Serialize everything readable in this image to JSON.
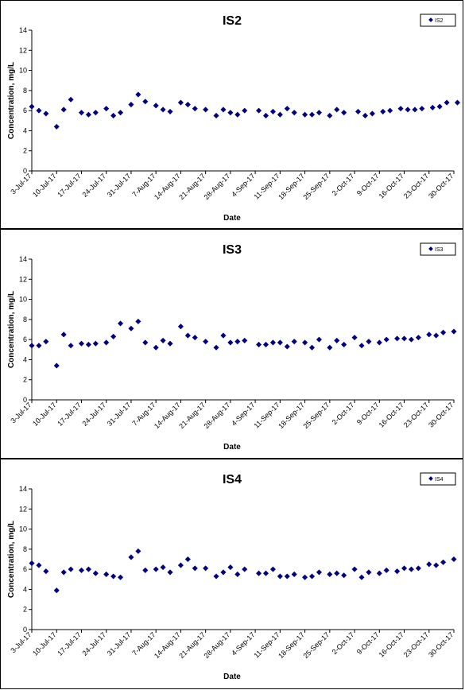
{
  "page": {
    "marker_color": "#000080"
  },
  "chart_data": [
    {
      "type": "scatter",
      "title": "IS2",
      "xlabel": "Date",
      "ylabel": "Concentration, mg/L",
      "ylim": [
        0,
        14
      ],
      "yticks": [
        0,
        2,
        4,
        6,
        8,
        10,
        12,
        14
      ],
      "xlim": [
        "2017-07-03",
        "2017-10-30"
      ],
      "xticks": [
        "3-Jul-17",
        "10-Jul-17",
        "17-Jul-17",
        "24-Jul-17",
        "31-Jul-17",
        "7-Aug-17",
        "14-Aug-17",
        "21-Aug-17",
        "28-Aug-17",
        "4-Sep-17",
        "11-Sep-17",
        "18-Sep-17",
        "25-Sep-17",
        "2-Oct-17",
        "9-Oct-17",
        "16-Oct-17",
        "23-Oct-17",
        "30-Oct-17"
      ],
      "grid": false,
      "legend": "top-right",
      "series": [
        {
          "name": "IS2",
          "color": "#000080",
          "points": [
            [
              "2017-07-03",
              6.4
            ],
            [
              "2017-07-05",
              6.0
            ],
            [
              "2017-07-07",
              5.7
            ],
            [
              "2017-07-10",
              4.4
            ],
            [
              "2017-07-12",
              6.1
            ],
            [
              "2017-07-14",
              7.1
            ],
            [
              "2017-07-17",
              5.8
            ],
            [
              "2017-07-19",
              5.6
            ],
            [
              "2017-07-21",
              5.8
            ],
            [
              "2017-07-24",
              6.2
            ],
            [
              "2017-07-26",
              5.5
            ],
            [
              "2017-07-28",
              5.8
            ],
            [
              "2017-07-31",
              6.6
            ],
            [
              "2017-08-02",
              7.6
            ],
            [
              "2017-08-04",
              6.9
            ],
            [
              "2017-08-07",
              6.5
            ],
            [
              "2017-08-09",
              6.1
            ],
            [
              "2017-08-11",
              5.9
            ],
            [
              "2017-08-14",
              6.8
            ],
            [
              "2017-08-16",
              6.6
            ],
            [
              "2017-08-18",
              6.2
            ],
            [
              "2017-08-21",
              6.1
            ],
            [
              "2017-08-24",
              5.5
            ],
            [
              "2017-08-26",
              6.1
            ],
            [
              "2017-08-28",
              5.8
            ],
            [
              "2017-08-30",
              5.6
            ],
            [
              "2017-09-01",
              6.0
            ],
            [
              "2017-09-05",
              6.0
            ],
            [
              "2017-09-07",
              5.5
            ],
            [
              "2017-09-09",
              5.9
            ],
            [
              "2017-09-11",
              5.6
            ],
            [
              "2017-09-13",
              6.2
            ],
            [
              "2017-09-15",
              5.8
            ],
            [
              "2017-09-18",
              5.6
            ],
            [
              "2017-09-20",
              5.6
            ],
            [
              "2017-09-22",
              5.8
            ],
            [
              "2017-09-25",
              5.5
            ],
            [
              "2017-09-27",
              6.1
            ],
            [
              "2017-09-29",
              5.8
            ],
            [
              "2017-10-03",
              5.9
            ],
            [
              "2017-10-05",
              5.5
            ],
            [
              "2017-10-07",
              5.7
            ],
            [
              "2017-10-10",
              5.9
            ],
            [
              "2017-10-12",
              6.0
            ],
            [
              "2017-10-15",
              6.2
            ],
            [
              "2017-10-17",
              6.1
            ],
            [
              "2017-10-19",
              6.1
            ],
            [
              "2017-10-21",
              6.2
            ],
            [
              "2017-10-24",
              6.3
            ],
            [
              "2017-10-26",
              6.4
            ],
            [
              "2017-10-28",
              6.8
            ],
            [
              "2017-10-31",
              6.8
            ]
          ]
        }
      ]
    },
    {
      "type": "scatter",
      "title": "IS3",
      "xlabel": "Date",
      "ylabel": "Concentration, mg/L",
      "ylim": [
        0,
        14
      ],
      "yticks": [
        0,
        2,
        4,
        6,
        8,
        10,
        12,
        14
      ],
      "xlim": [
        "2017-07-03",
        "2017-10-30"
      ],
      "xticks": [
        "3-Jul-17",
        "10-Jul-17",
        "17-Jul-17",
        "24-Jul-17",
        "31-Jul-17",
        "7-Aug-17",
        "14-Aug-17",
        "21-Aug-17",
        "28-Aug-17",
        "4-Sep-17",
        "11-Sep-17",
        "18-Sep-17",
        "25-Sep-17",
        "2-Oct-17",
        "9-Oct-17",
        "16-Oct-17",
        "23-Oct-17",
        "30-Oct-17"
      ],
      "grid": false,
      "legend": "top-right",
      "series": [
        {
          "name": "IS3",
          "color": "#000080",
          "points": [
            [
              "2017-07-03",
              5.4
            ],
            [
              "2017-07-05",
              5.4
            ],
            [
              "2017-07-07",
              5.8
            ],
            [
              "2017-07-10",
              3.4
            ],
            [
              "2017-07-12",
              6.5
            ],
            [
              "2017-07-14",
              5.4
            ],
            [
              "2017-07-17",
              5.6
            ],
            [
              "2017-07-19",
              5.5
            ],
            [
              "2017-07-21",
              5.6
            ],
            [
              "2017-07-24",
              5.7
            ],
            [
              "2017-07-26",
              6.3
            ],
            [
              "2017-07-28",
              7.6
            ],
            [
              "2017-07-31",
              7.1
            ],
            [
              "2017-08-02",
              7.8
            ],
            [
              "2017-08-04",
              5.7
            ],
            [
              "2017-08-07",
              5.2
            ],
            [
              "2017-08-09",
              5.9
            ],
            [
              "2017-08-11",
              5.6
            ],
            [
              "2017-08-14",
              7.3
            ],
            [
              "2017-08-16",
              6.4
            ],
            [
              "2017-08-18",
              6.2
            ],
            [
              "2017-08-21",
              5.8
            ],
            [
              "2017-08-24",
              5.2
            ],
            [
              "2017-08-26",
              6.4
            ],
            [
              "2017-08-28",
              5.7
            ],
            [
              "2017-08-30",
              5.8
            ],
            [
              "2017-09-01",
              5.9
            ],
            [
              "2017-09-05",
              5.5
            ],
            [
              "2017-09-07",
              5.5
            ],
            [
              "2017-09-09",
              5.7
            ],
            [
              "2017-09-11",
              5.7
            ],
            [
              "2017-09-13",
              5.3
            ],
            [
              "2017-09-15",
              5.8
            ],
            [
              "2017-09-18",
              5.7
            ],
            [
              "2017-09-20",
              5.2
            ],
            [
              "2017-09-22",
              6.0
            ],
            [
              "2017-09-25",
              5.2
            ],
            [
              "2017-09-27",
              5.9
            ],
            [
              "2017-09-29",
              5.5
            ],
            [
              "2017-10-02",
              6.2
            ],
            [
              "2017-10-04",
              5.4
            ],
            [
              "2017-10-06",
              5.8
            ],
            [
              "2017-10-09",
              5.7
            ],
            [
              "2017-10-11",
              6.0
            ],
            [
              "2017-10-14",
              6.1
            ],
            [
              "2017-10-16",
              6.1
            ],
            [
              "2017-10-18",
              6.0
            ],
            [
              "2017-10-20",
              6.2
            ],
            [
              "2017-10-23",
              6.5
            ],
            [
              "2017-10-25",
              6.4
            ],
            [
              "2017-10-27",
              6.7
            ],
            [
              "2017-10-30",
              6.8
            ]
          ]
        }
      ]
    },
    {
      "type": "scatter",
      "title": "IS4",
      "xlabel": "Date",
      "ylabel": "Concentration, mg/L",
      "ylim": [
        0,
        14
      ],
      "yticks": [
        0,
        2,
        4,
        6,
        8,
        10,
        12,
        14
      ],
      "xlim": [
        "2017-07-03",
        "2017-10-30"
      ],
      "xticks": [
        "3-Jul-17",
        "10-Jul-17",
        "17-Jul-17",
        "24-Jul-17",
        "31-Jul-17",
        "7-Aug-17",
        "14-Aug-17",
        "21-Aug-17",
        "28-Aug-17",
        "4-Sep-17",
        "11-Sep-17",
        "18-Sep-17",
        "25-Sep-17",
        "2-Oct-17",
        "9-Oct-17",
        "16-Oct-17",
        "23-Oct-17",
        "30-Oct-17"
      ],
      "grid": false,
      "legend": "top-right",
      "series": [
        {
          "name": "IS4",
          "color": "#000080",
          "points": [
            [
              "2017-07-03",
              6.6
            ],
            [
              "2017-07-05",
              6.4
            ],
            [
              "2017-07-07",
              5.8
            ],
            [
              "2017-07-10",
              3.9
            ],
            [
              "2017-07-12",
              5.7
            ],
            [
              "2017-07-14",
              6.0
            ],
            [
              "2017-07-17",
              5.9
            ],
            [
              "2017-07-19",
              6.0
            ],
            [
              "2017-07-21",
              5.6
            ],
            [
              "2017-07-24",
              5.5
            ],
            [
              "2017-07-26",
              5.3
            ],
            [
              "2017-07-28",
              5.2
            ],
            [
              "2017-07-31",
              7.2
            ],
            [
              "2017-08-02",
              7.8
            ],
            [
              "2017-08-04",
              5.9
            ],
            [
              "2017-08-07",
              6.0
            ],
            [
              "2017-08-09",
              6.2
            ],
            [
              "2017-08-11",
              5.7
            ],
            [
              "2017-08-14",
              6.4
            ],
            [
              "2017-08-16",
              7.0
            ],
            [
              "2017-08-18",
              6.1
            ],
            [
              "2017-08-21",
              6.1
            ],
            [
              "2017-08-24",
              5.3
            ],
            [
              "2017-08-26",
              5.7
            ],
            [
              "2017-08-28",
              6.2
            ],
            [
              "2017-08-30",
              5.5
            ],
            [
              "2017-09-01",
              6.0
            ],
            [
              "2017-09-05",
              5.6
            ],
            [
              "2017-09-07",
              5.6
            ],
            [
              "2017-09-09",
              6.0
            ],
            [
              "2017-09-11",
              5.3
            ],
            [
              "2017-09-13",
              5.3
            ],
            [
              "2017-09-15",
              5.5
            ],
            [
              "2017-09-18",
              5.2
            ],
            [
              "2017-09-20",
              5.3
            ],
            [
              "2017-09-22",
              5.7
            ],
            [
              "2017-09-25",
              5.5
            ],
            [
              "2017-09-27",
              5.6
            ],
            [
              "2017-09-29",
              5.4
            ],
            [
              "2017-10-02",
              6.0
            ],
            [
              "2017-10-04",
              5.2
            ],
            [
              "2017-10-06",
              5.7
            ],
            [
              "2017-10-09",
              5.6
            ],
            [
              "2017-10-11",
              5.9
            ],
            [
              "2017-10-14",
              5.8
            ],
            [
              "2017-10-16",
              6.1
            ],
            [
              "2017-10-18",
              6.0
            ],
            [
              "2017-10-20",
              6.1
            ],
            [
              "2017-10-23",
              6.5
            ],
            [
              "2017-10-25",
              6.4
            ],
            [
              "2017-10-27",
              6.7
            ],
            [
              "2017-10-30",
              7.0
            ]
          ]
        }
      ]
    }
  ]
}
